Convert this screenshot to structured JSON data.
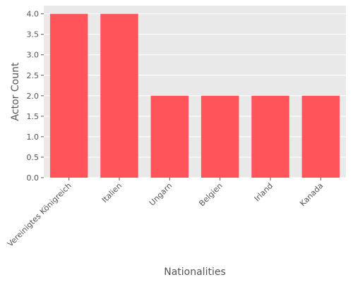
{
  "chart_data": {
    "type": "bar",
    "title": "",
    "xlabel": "Nationalities",
    "ylabel": "Actor Count",
    "categories": [
      "Vereinigtes Königreich",
      "Italien",
      "Ungarn",
      "Belgien",
      "Irland",
      "Kanada"
    ],
    "values": [
      4,
      4,
      2,
      2,
      2,
      2
    ],
    "ylim": [
      0,
      4.2
    ],
    "yticks": [
      0.0,
      0.5,
      1.0,
      1.5,
      2.0,
      2.5,
      3.0,
      3.5,
      4.0
    ],
    "ytick_labels": [
      "0.0",
      "0.5",
      "1.0",
      "1.5",
      "2.0",
      "2.5",
      "3.0",
      "3.5",
      "4.0"
    ],
    "grid": true,
    "legend": "none",
    "colors": {
      "bar": "#ff5459",
      "plot_bg": "#e9e9e9",
      "grid": "#ffffff",
      "text": "#555555"
    }
  }
}
